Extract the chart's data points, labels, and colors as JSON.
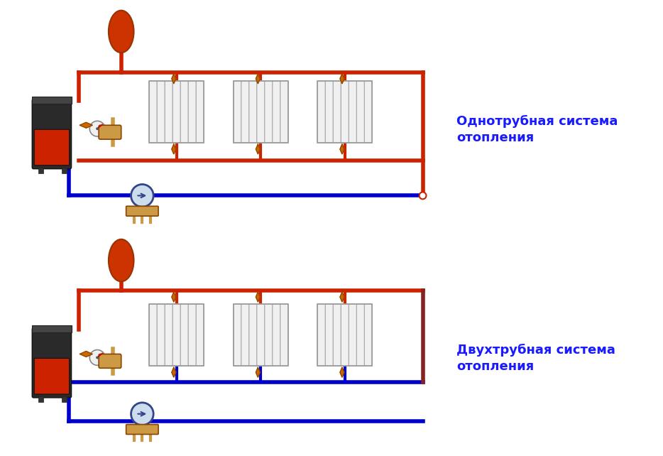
{
  "bg_color": "#ffffff",
  "title1": "Однотрубная система\nотопления",
  "title2": "Двухтрубная система\nотопления",
  "text_color": "#1a1aff",
  "red": "#cc2200",
  "blue": "#0000cc",
  "pipe_lw": 4,
  "radiator_color": "#e8e8e8",
  "boiler_dark": "#2a2a2a",
  "boiler_red": "#cc2200",
  "tank_color": "#cc3300",
  "valve_color": "#cc6600",
  "pump_color": "#4466aa"
}
